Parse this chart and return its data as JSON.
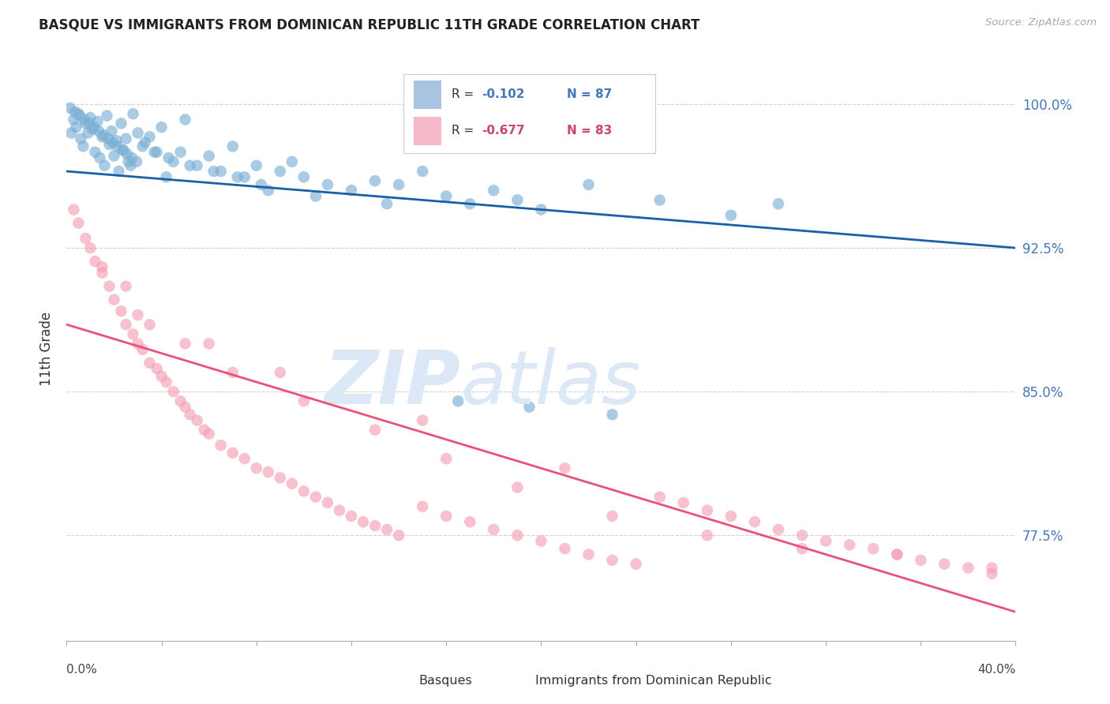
{
  "title": "BASQUE VS IMMIGRANTS FROM DOMINICAN REPUBLIC 11TH GRADE CORRELATION CHART",
  "source": "Source: ZipAtlas.com",
  "ylabel": "11th Grade",
  "xmin": 0.0,
  "xmax": 40.0,
  "ymin": 72.0,
  "ymax": 102.5,
  "yticks": [
    77.5,
    85.0,
    92.5,
    100.0
  ],
  "ytick_labels": [
    "77.5%",
    "85.0%",
    "92.5%",
    "100.0%"
  ],
  "blue_line_x": [
    0.0,
    40.0
  ],
  "blue_line_y": [
    96.5,
    92.5
  ],
  "pink_line_x": [
    0.0,
    40.0
  ],
  "pink_line_y": [
    88.5,
    73.5
  ],
  "blue_color": "#7bafd4",
  "pink_color": "#f4a0b5",
  "blue_line_color": "#1a5fa8",
  "pink_line_color": "#e8527a",
  "watermark_color": "#dce8f5",
  "background_color": "#ffffff",
  "grid_color": "#cccccc",
  "blue_R": "-0.102",
  "blue_N": "87",
  "pink_R": "-0.677",
  "pink_N": "83",
  "legend_color_blue": "#a8c4e0",
  "legend_color_pink": "#f5b8c8",
  "legend_text_blue": "#4477bb",
  "legend_text_pink": "#cc4477",
  "blue_scatter_x": [
    0.2,
    0.3,
    0.4,
    0.5,
    0.6,
    0.7,
    0.8,
    0.9,
    1.0,
    1.1,
    1.2,
    1.3,
    1.4,
    1.5,
    1.6,
    1.7,
    1.8,
    1.9,
    2.0,
    2.1,
    2.2,
    2.3,
    2.4,
    2.5,
    2.6,
    2.7,
    2.8,
    3.0,
    3.2,
    3.5,
    3.8,
    4.0,
    4.2,
    4.5,
    4.8,
    5.0,
    5.5,
    6.0,
    6.5,
    7.0,
    7.5,
    8.0,
    8.5,
    9.0,
    9.5,
    10.0,
    11.0,
    12.0,
    13.0,
    14.0,
    15.0,
    16.0,
    17.0,
    18.0,
    19.0,
    20.0,
    22.0,
    25.0,
    28.0,
    30.0,
    0.15,
    0.35,
    0.55,
    0.75,
    0.95,
    1.15,
    1.35,
    1.55,
    1.75,
    1.95,
    2.15,
    2.35,
    2.55,
    2.75,
    2.95,
    3.3,
    3.7,
    4.3,
    5.2,
    6.2,
    7.2,
    8.2,
    10.5,
    13.5,
    16.5,
    19.5,
    23.0
  ],
  "blue_scatter_y": [
    98.5,
    99.2,
    98.8,
    99.5,
    98.2,
    97.8,
    99.0,
    98.5,
    99.3,
    98.7,
    97.5,
    99.1,
    97.2,
    98.3,
    96.8,
    99.4,
    97.9,
    98.6,
    97.3,
    98.1,
    96.5,
    99.0,
    97.6,
    98.2,
    97.0,
    96.8,
    99.5,
    98.5,
    97.8,
    98.3,
    97.5,
    98.8,
    96.2,
    97.0,
    97.5,
    99.2,
    96.8,
    97.3,
    96.5,
    97.8,
    96.2,
    96.8,
    95.5,
    96.5,
    97.0,
    96.2,
    95.8,
    95.5,
    96.0,
    95.8,
    96.5,
    95.2,
    94.8,
    95.5,
    95.0,
    94.5,
    95.8,
    95.0,
    94.2,
    94.8,
    99.8,
    99.6,
    99.4,
    99.2,
    99.0,
    98.8,
    98.6,
    98.4,
    98.2,
    98.0,
    97.8,
    97.6,
    97.4,
    97.2,
    97.0,
    98.0,
    97.5,
    97.2,
    96.8,
    96.5,
    96.2,
    95.8,
    95.2,
    94.8,
    84.5,
    84.2,
    83.8
  ],
  "pink_scatter_x": [
    0.3,
    0.5,
    0.8,
    1.0,
    1.2,
    1.5,
    1.8,
    2.0,
    2.3,
    2.5,
    2.8,
    3.0,
    3.2,
    3.5,
    3.8,
    4.0,
    4.2,
    4.5,
    4.8,
    5.0,
    5.2,
    5.5,
    5.8,
    6.0,
    6.5,
    7.0,
    7.5,
    8.0,
    8.5,
    9.0,
    9.5,
    10.0,
    10.5,
    11.0,
    11.5,
    12.0,
    12.5,
    13.0,
    13.5,
    14.0,
    15.0,
    16.0,
    17.0,
    18.0,
    19.0,
    20.0,
    21.0,
    22.0,
    23.0,
    24.0,
    25.0,
    26.0,
    27.0,
    28.0,
    29.0,
    30.0,
    31.0,
    32.0,
    33.0,
    34.0,
    35.0,
    36.0,
    37.0,
    38.0,
    39.0,
    1.5,
    2.5,
    3.5,
    5.0,
    7.0,
    10.0,
    13.0,
    16.0,
    19.0,
    23.0,
    27.0,
    31.0,
    35.0,
    39.0,
    3.0,
    6.0,
    9.0,
    15.0,
    21.0
  ],
  "pink_scatter_y": [
    94.5,
    93.8,
    93.0,
    92.5,
    91.8,
    91.2,
    90.5,
    89.8,
    89.2,
    88.5,
    88.0,
    87.5,
    87.2,
    86.5,
    86.2,
    85.8,
    85.5,
    85.0,
    84.5,
    84.2,
    83.8,
    83.5,
    83.0,
    82.8,
    82.2,
    81.8,
    81.5,
    81.0,
    80.8,
    80.5,
    80.2,
    79.8,
    79.5,
    79.2,
    78.8,
    78.5,
    78.2,
    78.0,
    77.8,
    77.5,
    79.0,
    78.5,
    78.2,
    77.8,
    77.5,
    77.2,
    76.8,
    76.5,
    76.2,
    76.0,
    79.5,
    79.2,
    78.8,
    78.5,
    78.2,
    77.8,
    77.5,
    77.2,
    77.0,
    76.8,
    76.5,
    76.2,
    76.0,
    75.8,
    75.5,
    91.5,
    90.5,
    88.5,
    87.5,
    86.0,
    84.5,
    83.0,
    81.5,
    80.0,
    78.5,
    77.5,
    76.8,
    76.5,
    75.8,
    89.0,
    87.5,
    86.0,
    83.5,
    81.0
  ]
}
